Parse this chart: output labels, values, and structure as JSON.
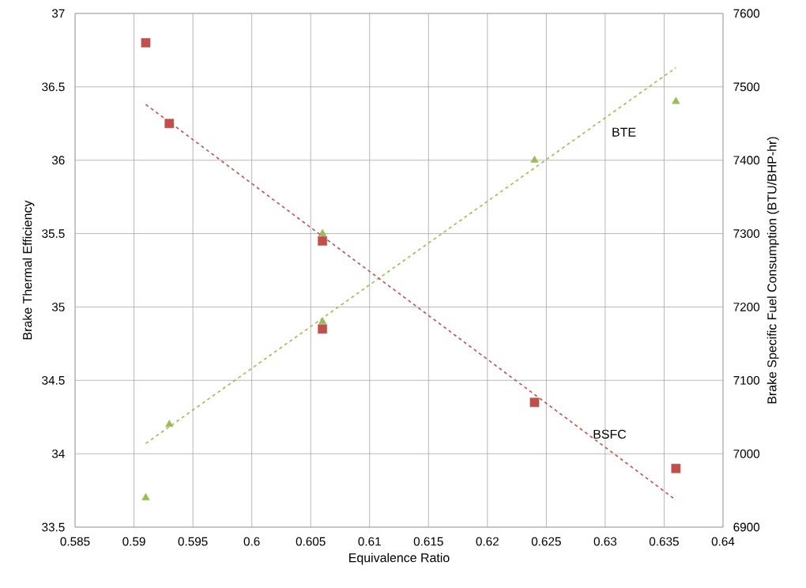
{
  "chart_data": {
    "type": "scatter",
    "xlabel": "Equivalence Ratio",
    "ylabel": "Brake Thermal Efficiency",
    "y2label": "Brake Specific Fuel Consumption (BTU/BHP-hr)",
    "xlim": [
      0.585,
      0.64
    ],
    "xticks": [
      0.585,
      0.59,
      0.595,
      0.6,
      0.605,
      0.61,
      0.615,
      0.62,
      0.625,
      0.63,
      0.635,
      0.64
    ],
    "ylim": [
      33.5,
      37
    ],
    "yticks": [
      33.5,
      34,
      34.5,
      35,
      35.5,
      36,
      36.5,
      37
    ],
    "y2lim": [
      6900,
      7600
    ],
    "y2ticks": [
      6900,
      7000,
      7100,
      7200,
      7300,
      7400,
      7500,
      7600
    ],
    "grid": true,
    "series": [
      {
        "color": "#9bbb59",
        "marker": "triangle",
        "x": [
          0.591,
          0.593,
          0.606,
          0.606,
          0.624,
          0.636
        ],
        "values": [
          33.7,
          34.2,
          34.9,
          35.5,
          36.0,
          36.4
        ]
      },
      {
        "color": "#c0504d",
        "marker": "square",
        "axis": "y2",
        "x": [
          0.591,
          0.593,
          0.606,
          0.606,
          0.624,
          0.636
        ],
        "values": [
          7560,
          7450,
          7290,
          7170,
          7070,
          6980
        ]
      },
      {
        "type": "line",
        "color": "#9bbb59",
        "line_style": "dashed",
        "x": [
          0.591,
          0.636
        ],
        "values": [
          34.07,
          36.63
        ]
      },
      {
        "type": "line",
        "color": "#c0504d",
        "line_style": "dashed",
        "axis": "y2",
        "x": [
          0.591,
          0.636
        ],
        "values": [
          7476,
          6937
        ]
      }
    ],
    "annotations": [
      "BTE",
      "BSFC"
    ]
  }
}
